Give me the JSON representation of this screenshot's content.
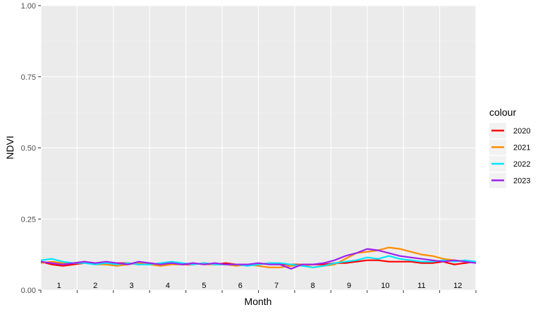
{
  "chart_data": {
    "type": "line",
    "title": "",
    "xlabel": "Month",
    "ylabel": "NDVI",
    "ylim": [
      0,
      1
    ],
    "xlim": [
      0.5,
      12.5
    ],
    "grid": true,
    "legend_position": "right",
    "y_ticks": [
      "0.00",
      "0.25",
      "0.50",
      "0.75",
      "1.00"
    ],
    "y_tick_values": [
      0,
      0.25,
      0.5,
      0.75,
      1
    ],
    "x_ticks": [
      "1",
      "2",
      "3",
      "4",
      "5",
      "6",
      "7",
      "8",
      "9",
      "10",
      "11",
      "12"
    ],
    "legend_title": "colour",
    "x": [
      0.5,
      0.8,
      1.1,
      1.4,
      1.7,
      2.0,
      2.3,
      2.6,
      2.9,
      3.2,
      3.5,
      3.8,
      4.1,
      4.4,
      4.7,
      5.0,
      5.3,
      5.6,
      5.9,
      6.2,
      6.5,
      6.8,
      7.1,
      7.4,
      7.7,
      8.0,
      8.3,
      8.6,
      8.9,
      9.2,
      9.5,
      9.8,
      10.1,
      10.4,
      10.7,
      11.0,
      11.3,
      11.6,
      11.9,
      12.2,
      12.5
    ],
    "series": [
      {
        "name": "2020",
        "color": "#ff0000",
        "values": [
          0.1,
          0.09,
          0.085,
          0.09,
          0.095,
          0.095,
          0.09,
          0.095,
          0.095,
          0.09,
          0.095,
          0.09,
          0.095,
          0.09,
          0.09,
          0.095,
          0.09,
          0.095,
          0.09,
          0.09,
          0.09,
          0.095,
          0.09,
          0.09,
          0.09,
          0.09,
          0.09,
          0.095,
          0.095,
          0.1,
          0.105,
          0.105,
          0.1,
          0.1,
          0.1,
          0.095,
          0.095,
          0.1,
          0.09,
          0.095,
          0.1
        ]
      },
      {
        "name": "2021",
        "color": "#ff8c00",
        "values": [
          0.095,
          0.1,
          0.095,
          0.095,
          0.1,
          0.09,
          0.09,
          0.085,
          0.09,
          0.095,
          0.09,
          0.085,
          0.09,
          0.09,
          0.095,
          0.09,
          0.09,
          0.09,
          0.085,
          0.09,
          0.085,
          0.08,
          0.08,
          0.085,
          0.09,
          0.08,
          0.085,
          0.09,
          0.11,
          0.13,
          0.135,
          0.14,
          0.15,
          0.145,
          0.135,
          0.125,
          0.12,
          0.11,
          0.105,
          0.1,
          0.1
        ]
      },
      {
        "name": "2022",
        "color": "#00e5ff",
        "values": [
          0.105,
          0.11,
          0.1,
          0.095,
          0.095,
          0.09,
          0.095,
          0.09,
          0.095,
          0.09,
          0.09,
          0.095,
          0.1,
          0.095,
          0.09,
          0.095,
          0.09,
          0.09,
          0.09,
          0.085,
          0.09,
          0.095,
          0.095,
          0.09,
          0.085,
          0.08,
          0.085,
          0.095,
          0.1,
          0.105,
          0.115,
          0.11,
          0.12,
          0.11,
          0.105,
          0.1,
          0.1,
          0.105,
          0.1,
          0.105,
          0.1
        ]
      },
      {
        "name": "2023",
        "color": "#a020f0",
        "values": [
          0.1,
          0.095,
          0.09,
          0.095,
          0.1,
          0.095,
          0.1,
          0.095,
          0.09,
          0.1,
          0.095,
          0.09,
          0.095,
          0.09,
          0.095,
          0.09,
          0.095,
          0.09,
          0.09,
          0.09,
          0.095,
          0.09,
          0.09,
          0.075,
          0.09,
          0.09,
          0.095,
          0.105,
          0.12,
          0.13,
          0.145,
          0.14,
          0.13,
          0.12,
          0.115,
          0.11,
          0.105,
          0.1,
          0.105,
          0.1,
          0.095
        ]
      }
    ]
  }
}
